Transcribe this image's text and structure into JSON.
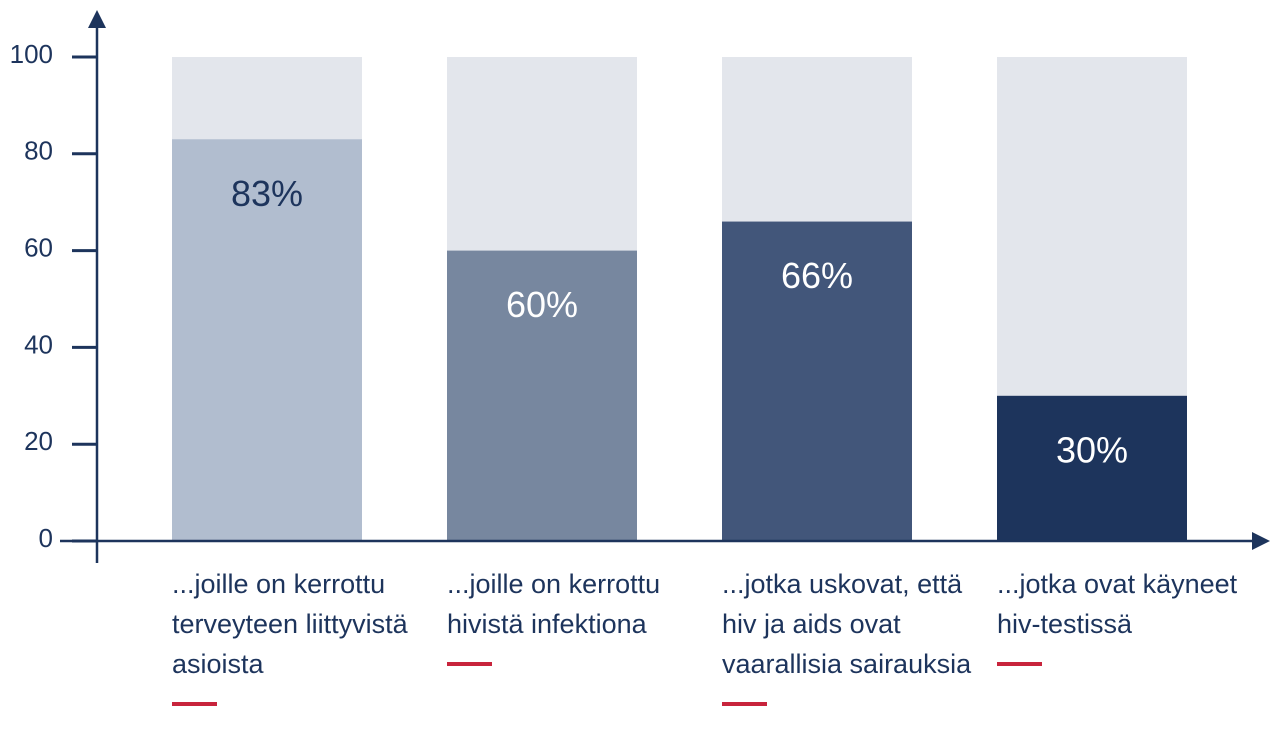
{
  "chart_data": {
    "type": "bar",
    "categories": [
      "...joille on kerrottu terveyteen liittyvistä asioista",
      "...joille on kerrottu hivistä infektiona",
      "...jotka uskovat, että hiv ja aids ovat vaarallisia sairauksia",
      "...jotka ovat käyneet hiv-testissä"
    ],
    "values": [
      83,
      60,
      66,
      30
    ],
    "value_labels": [
      "83%",
      "60%",
      "66%",
      "30%"
    ],
    "colors": [
      "#b1bdcf",
      "#77879f",
      "#42567a",
      "#1d345c"
    ],
    "value_label_colors": [
      "#1d345c",
      "#ffffff",
      "#ffffff",
      "#ffffff"
    ],
    "background_color": "#e3e6ec",
    "ylim": [
      0,
      100
    ],
    "yticks": [
      0,
      20,
      40,
      60,
      80,
      100
    ]
  }
}
